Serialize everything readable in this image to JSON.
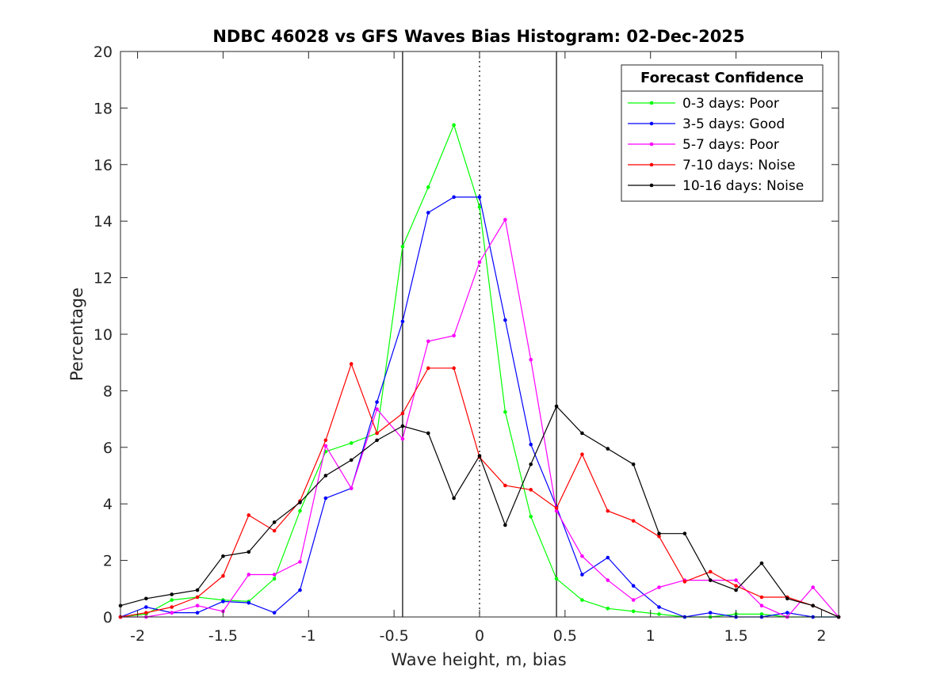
{
  "chart_data": {
    "type": "line",
    "title": "NDBC 46028 vs GFS Waves Bias Histogram: 02-Dec-2025",
    "xlabel": "Wave height, m, bias",
    "ylabel": "Percentage",
    "xlim": [
      -2.1,
      2.1
    ],
    "ylim": [
      0,
      20
    ],
    "xticks": [
      -2,
      -1.5,
      -1,
      -0.5,
      0,
      0.5,
      1,
      1.5,
      2
    ],
    "xtick_labels": [
      "-2",
      "-1.5",
      "-1",
      "-0.5",
      "0",
      "0.5",
      "1",
      "1.5",
      "2"
    ],
    "yticks": [
      0,
      2,
      4,
      6,
      8,
      10,
      12,
      14,
      16,
      18,
      20
    ],
    "ytick_labels": [
      "0",
      "2",
      "4",
      "6",
      "8",
      "10",
      "12",
      "14",
      "16",
      "18",
      "20"
    ],
    "reference_lines": [
      {
        "x": -0.45,
        "style": "solid",
        "color": "#000000"
      },
      {
        "x": 0,
        "style": "dotted",
        "color": "#000000"
      },
      {
        "x": 0.45,
        "style": "solid",
        "color": "#000000"
      }
    ],
    "legend": {
      "title": "Forecast Confidence",
      "position": "top-right"
    },
    "x": [
      -2.1,
      -1.95,
      -1.8,
      -1.65,
      -1.5,
      -1.35,
      -1.2,
      -1.05,
      -0.9,
      -0.75,
      -0.6,
      -0.45,
      -0.3,
      -0.15,
      0,
      0.15,
      0.3,
      0.45,
      0.6,
      0.75,
      0.9,
      1.05,
      1.2,
      1.35,
      1.5,
      1.65,
      1.8,
      1.95,
      2.1
    ],
    "series": [
      {
        "name": "0-3 days: Poor",
        "color": "#00ff00",
        "values": [
          0,
          0.1,
          0.6,
          0.7,
          0.6,
          0.55,
          1.35,
          3.75,
          5.85,
          6.15,
          6.5,
          13.1,
          15.2,
          17.4,
          14.5,
          7.25,
          3.55,
          1.35,
          0.6,
          0.3,
          0.2,
          0.1,
          0,
          0,
          0.1,
          0.1,
          0,
          0,
          0
        ]
      },
      {
        "name": "3-5 days: Good",
        "color": "#0000ff",
        "values": [
          0,
          0.35,
          0.15,
          0.15,
          0.55,
          0.5,
          0.15,
          0.95,
          4.2,
          4.55,
          7.6,
          10.45,
          14.3,
          14.85,
          14.85,
          10.5,
          6.1,
          3.9,
          1.5,
          2.1,
          1.1,
          0.35,
          0,
          0.15,
          0,
          0,
          0.15,
          0,
          0
        ]
      },
      {
        "name": "5-7 days: Poor",
        "color": "#ff00ff",
        "values": [
          0,
          0,
          0.15,
          0.4,
          0.2,
          1.5,
          1.5,
          1.95,
          6.05,
          4.55,
          7.35,
          6.3,
          9.75,
          9.95,
          12.55,
          14.05,
          9.1,
          3.75,
          2.15,
          1.3,
          0.6,
          1.05,
          1.3,
          1.3,
          1.3,
          0.4,
          0,
          1.05,
          0
        ]
      },
      {
        "name": "7-10 days: Noise",
        "color": "#ff0000",
        "values": [
          0,
          0.15,
          0.35,
          0.7,
          1.45,
          3.6,
          3.05,
          4.1,
          6.25,
          8.95,
          6.5,
          7.2,
          8.8,
          8.8,
          5.65,
          4.65,
          4.5,
          3.85,
          5.75,
          3.75,
          3.4,
          2.85,
          1.25,
          1.6,
          1.1,
          0.7,
          0.7,
          0.4,
          0
        ]
      },
      {
        "name": "10-16 days: Noise",
        "color": "#000000",
        "values": [
          0.4,
          0.65,
          0.8,
          0.95,
          2.15,
          2.3,
          3.35,
          4.05,
          5.0,
          5.55,
          6.25,
          6.75,
          6.5,
          4.2,
          5.7,
          3.25,
          5.4,
          7.45,
          6.5,
          5.95,
          5.4,
          2.95,
          2.95,
          1.3,
          0.95,
          1.9,
          0.65,
          0.4,
          0
        ]
      }
    ]
  }
}
